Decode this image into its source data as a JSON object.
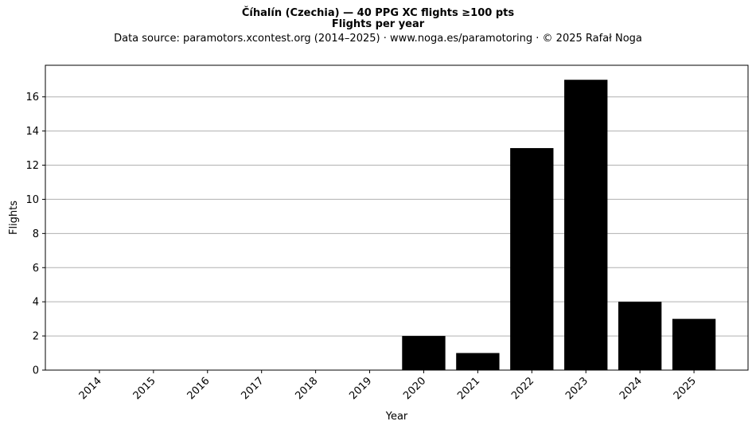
{
  "header": {
    "title": "Číhalín (Czechia)  —  40 PPG XC flights ≥100 pts",
    "subtitle": "Flights per year",
    "source": "Data source: paramotors.xcontest.org (2014–2025)  ·  www.noga.es/paramotoring  ·  © 2025 Rafał Noga"
  },
  "chart_data": {
    "type": "bar",
    "title": "Číhalín (Czechia)  —  40 PPG XC flights ≥100 pts",
    "subtitle": "Flights per year",
    "xlabel": "Year",
    "ylabel": "Flights",
    "categories": [
      "2014",
      "2015",
      "2016",
      "2017",
      "2018",
      "2019",
      "2020",
      "2021",
      "2022",
      "2023",
      "2024",
      "2025"
    ],
    "values": [
      0,
      0,
      0,
      0,
      0,
      0,
      2,
      1,
      13,
      17,
      4,
      3
    ],
    "ylim": [
      0,
      17.85
    ],
    "yticks": [
      0,
      2,
      4,
      6,
      8,
      10,
      12,
      14,
      16
    ],
    "grid": "y-axis",
    "bar_color": "#000000",
    "grid_color": "#b0b0b0"
  }
}
